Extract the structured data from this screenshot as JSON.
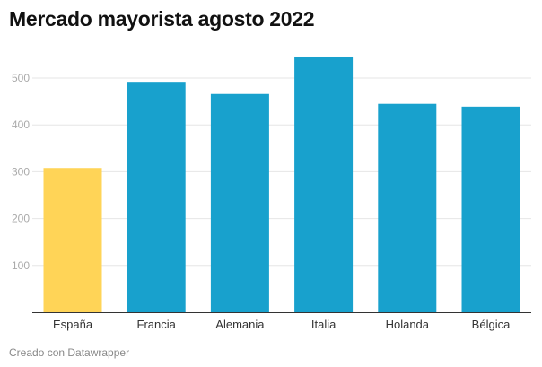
{
  "chart_data": {
    "type": "bar",
    "title": "Mercado mayorista agosto 2022",
    "categories": [
      "España",
      "Francia",
      "Alemania",
      "Italia",
      "Holanda",
      "Bélgica"
    ],
    "values": [
      308,
      492,
      466,
      546,
      445,
      439
    ],
    "colors": [
      "#ffd457",
      "#18a1cd",
      "#18a1cd",
      "#18a1cd",
      "#18a1cd",
      "#18a1cd"
    ],
    "yticks": [
      100,
      200,
      300,
      400,
      500
    ],
    "ylim": [
      0,
      560
    ],
    "grid": true,
    "xlabel": "",
    "ylabel": ""
  },
  "footer": "Creado con Datawrapper"
}
